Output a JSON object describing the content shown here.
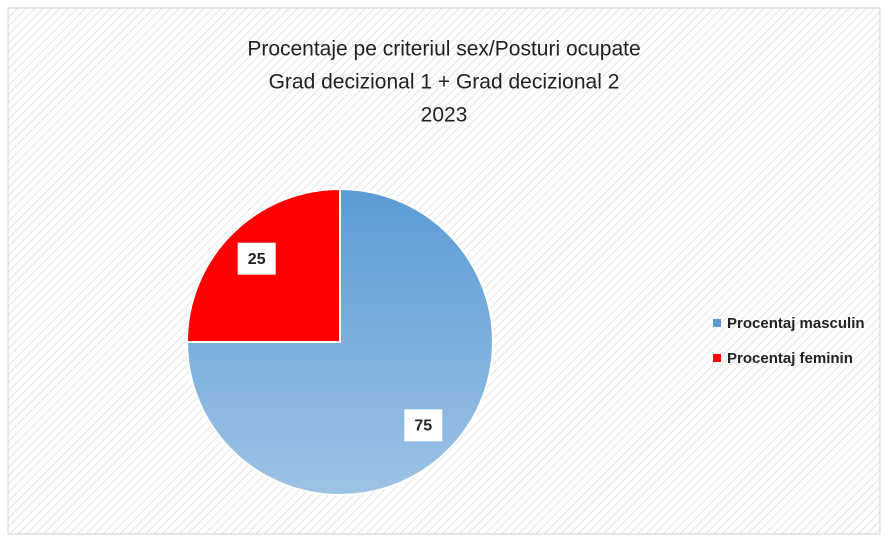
{
  "chart_data": {
    "type": "pie",
    "title": [
      "Procentaje pe criteriul sex/Posturi ocupate",
      "Grad decizional 1 + Grad decizional 2",
      "2023"
    ],
    "categories": [
      "Procentaj masculin",
      "Procentaj feminin"
    ],
    "values": [
      75,
      25
    ],
    "colors": [
      "#5b9bd5",
      "#ff0000"
    ],
    "legend": "right"
  }
}
